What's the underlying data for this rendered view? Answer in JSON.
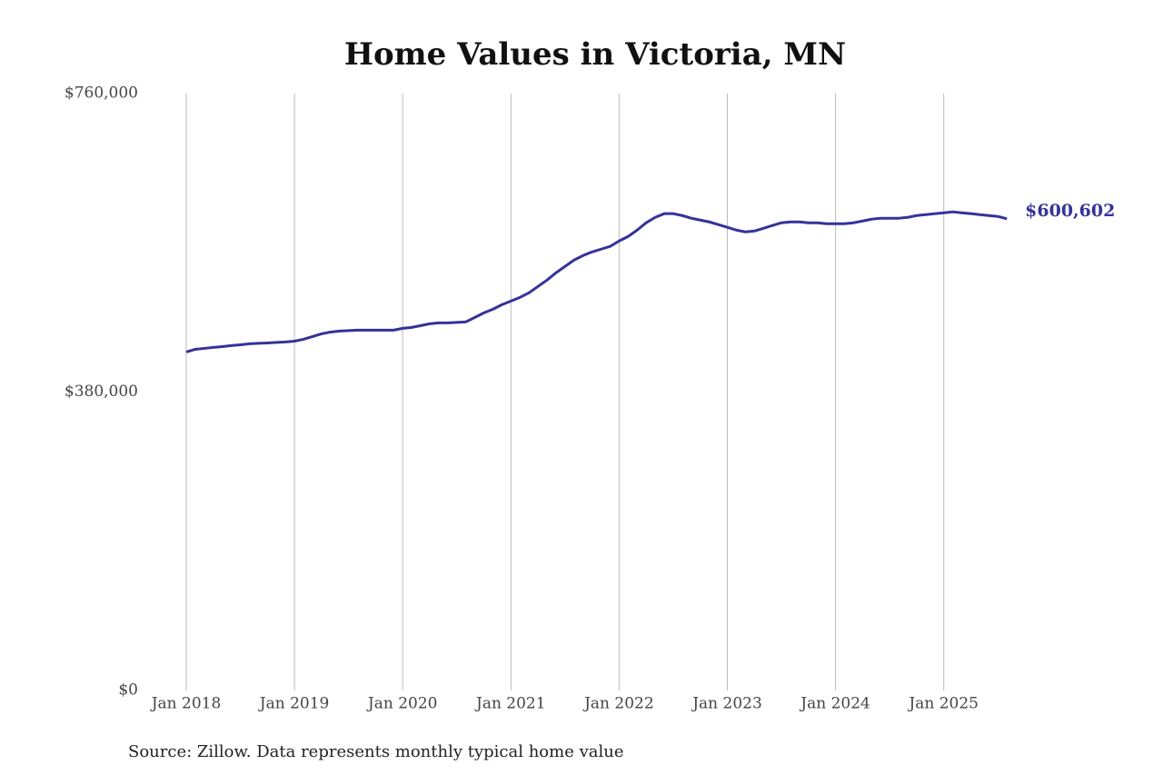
{
  "chart_data": {
    "type": "line",
    "title": "Home Values in Victoria, MN",
    "source": "Source: Zillow. Data represents monthly typical home value",
    "x": [
      "2018-01",
      "2018-02",
      "2018-03",
      "2018-04",
      "2018-05",
      "2018-06",
      "2018-07",
      "2018-08",
      "2018-09",
      "2018-10",
      "2018-11",
      "2018-12",
      "2019-01",
      "2019-02",
      "2019-03",
      "2019-04",
      "2019-05",
      "2019-06",
      "2019-07",
      "2019-08",
      "2019-09",
      "2019-10",
      "2019-11",
      "2019-12",
      "2020-01",
      "2020-02",
      "2020-03",
      "2020-04",
      "2020-05",
      "2020-06",
      "2020-07",
      "2020-08",
      "2020-09",
      "2020-10",
      "2020-11",
      "2020-12",
      "2021-01",
      "2021-02",
      "2021-03",
      "2021-04",
      "2021-05",
      "2021-06",
      "2021-07",
      "2021-08",
      "2021-09",
      "2021-10",
      "2021-11",
      "2021-12",
      "2022-01",
      "2022-02",
      "2022-03",
      "2022-04",
      "2022-05",
      "2022-06",
      "2022-07",
      "2022-08",
      "2022-09",
      "2022-10",
      "2022-11",
      "2022-12",
      "2023-01",
      "2023-02",
      "2023-03",
      "2023-04",
      "2023-05",
      "2023-06",
      "2023-07",
      "2023-08",
      "2023-09",
      "2023-10",
      "2023-11",
      "2023-12",
      "2024-01",
      "2024-02",
      "2024-03",
      "2024-04",
      "2024-05",
      "2024-06",
      "2024-07",
      "2024-08",
      "2024-09",
      "2024-10",
      "2024-11",
      "2024-12",
      "2025-01",
      "2025-02",
      "2025-03",
      "2025-04",
      "2025-05",
      "2025-06",
      "2025-07",
      "2025-08"
    ],
    "series": [
      {
        "name": "Typical home value",
        "color": "#35329a",
        "values": [
          431000,
          434400,
          435600,
          436800,
          437900,
          439100,
          440200,
          441400,
          442000,
          442500,
          443200,
          443700,
          444800,
          447200,
          450600,
          454100,
          456400,
          457600,
          458200,
          458800,
          458800,
          458800,
          458800,
          458800,
          461100,
          462300,
          464600,
          466900,
          468000,
          468000,
          468600,
          469300,
          475000,
          480800,
          485400,
          491200,
          495800,
          500500,
          506300,
          514400,
          522500,
          531800,
          539900,
          548000,
          553800,
          558400,
          561900,
          565400,
          572300,
          578100,
          586200,
          595500,
          602400,
          607100,
          607100,
          604700,
          601300,
          598900,
          596600,
          593200,
          589700,
          586200,
          583900,
          585000,
          588500,
          592000,
          595500,
          596600,
          596600,
          595500,
          595500,
          594300,
          594300,
          594300,
          595500,
          597800,
          600100,
          601300,
          601300,
          601300,
          602400,
          604700,
          605900,
          607100,
          608200,
          609400,
          608200,
          607100,
          605900,
          604700,
          603600,
          600602
        ],
        "value_labels": [
          null,
          null,
          null,
          null,
          null,
          null,
          null,
          null,
          null,
          null,
          null,
          null,
          null,
          null,
          null,
          null,
          null,
          null,
          null,
          null,
          null,
          null,
          null,
          null,
          null,
          null,
          null,
          null,
          null,
          null,
          null,
          null,
          null,
          null,
          null,
          null,
          null,
          null,
          null,
          null,
          null,
          null,
          null,
          null,
          null,
          null,
          null,
          null,
          null,
          null,
          null,
          null,
          null,
          null,
          null,
          null,
          null,
          null,
          null,
          null,
          null,
          null,
          null,
          null,
          null,
          null,
          null,
          null,
          null,
          null,
          null,
          null,
          null,
          null,
          null,
          null,
          null,
          null,
          null,
          null,
          null,
          null,
          null,
          null,
          null,
          null,
          null,
          null,
          null,
          null,
          null,
          "$600,602"
        ]
      }
    ],
    "ylim": [
      0,
      760000
    ],
    "yticks": [
      {
        "value": 0,
        "label": "$0"
      },
      {
        "value": 380000,
        "label": "$380,000"
      },
      {
        "value": 760000,
        "label": "$760,000"
      }
    ],
    "xticks": [
      {
        "value": "2018-01",
        "label": "Jan 2018"
      },
      {
        "value": "2019-01",
        "label": "Jan 2019"
      },
      {
        "value": "2020-01",
        "label": "Jan 2020"
      },
      {
        "value": "2021-01",
        "label": "Jan 2021"
      },
      {
        "value": "2022-01",
        "label": "Jan 2022"
      },
      {
        "value": "2023-01",
        "label": "Jan 2023"
      },
      {
        "value": "2024-01",
        "label": "Jan 2024"
      },
      {
        "value": "2025-01",
        "label": "Jan 2025"
      }
    ],
    "grid": "x"
  }
}
